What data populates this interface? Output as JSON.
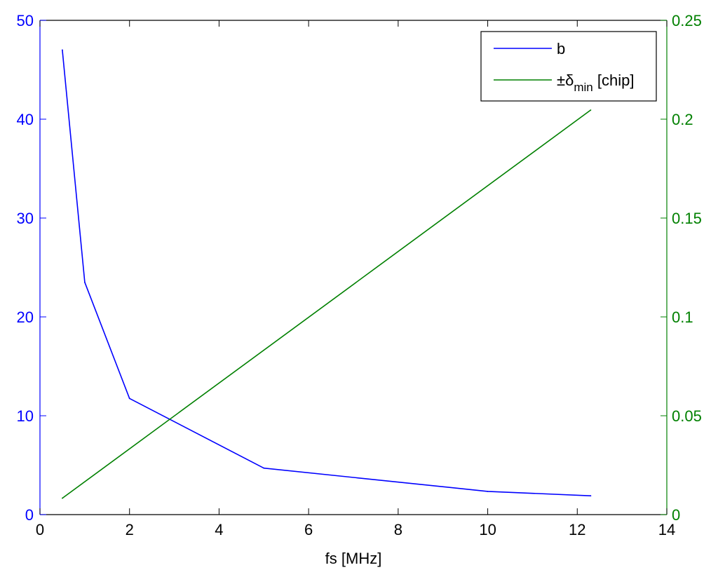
{
  "chart_data": {
    "type": "line",
    "title": "",
    "xlabel": "fs [MHz]",
    "xlim": [
      0,
      14
    ],
    "xticks": [
      "0",
      "2",
      "4",
      "6",
      "8",
      "10",
      "12",
      "14"
    ],
    "ylabel_left": "",
    "ylim_left": [
      0,
      50
    ],
    "yticks_left": [
      "0",
      "10",
      "20",
      "30",
      "40",
      "50"
    ],
    "ylabel_right": "",
    "ylim_right": [
      0,
      0.25
    ],
    "yticks_right": [
      "0",
      "0.05",
      "0.1",
      "0.15",
      "0.2",
      "0.25"
    ],
    "grid": false,
    "legend_position": "top-right",
    "series": [
      {
        "name": "b",
        "axis": "left",
        "color": "#0000ff",
        "x": [
          0.5,
          1.0,
          2.0,
          5.0,
          10.0,
          12.3
        ],
        "y": [
          47,
          23.5,
          11.75,
          4.7,
          2.35,
          1.9
        ]
      },
      {
        "name": "±δmin [chip]",
        "legend_main": "±δ",
        "legend_sub": "min",
        "legend_tail": " [chip]",
        "axis": "right",
        "color": "#008000",
        "x": [
          0.5,
          12.3
        ],
        "y": [
          0.0083,
          0.2046
        ]
      }
    ],
    "colors": {
      "left_axis": "#0000ff",
      "right_axis": "#008000",
      "frame": "#000000",
      "xaxis": "#000000"
    }
  }
}
